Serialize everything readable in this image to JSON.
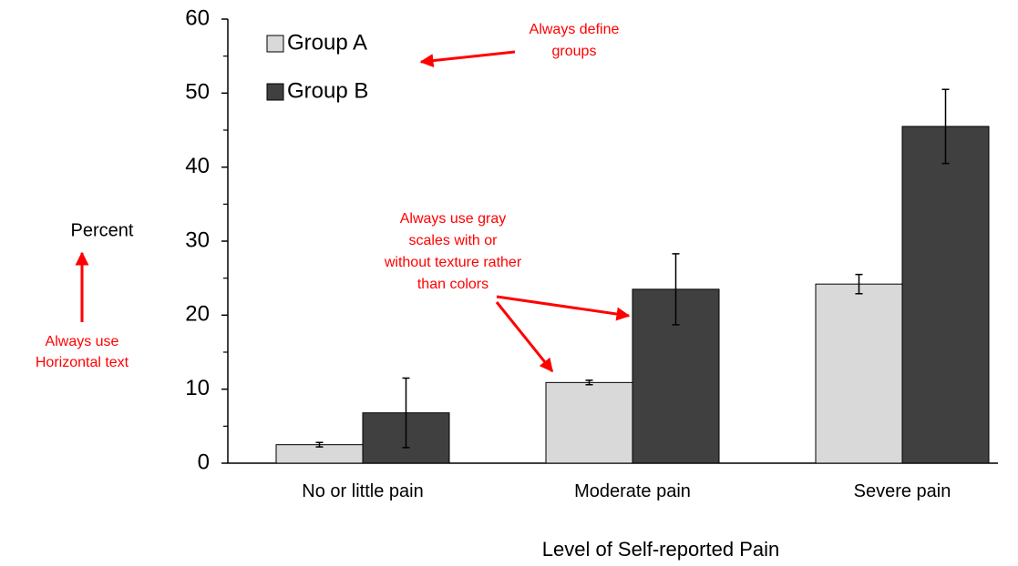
{
  "chart_data": {
    "type": "bar",
    "y_label": "Percent",
    "x_label": "Level of Self-reported Pain",
    "categories": [
      "No or little pain",
      "Moderate pain",
      "Severe pain"
    ],
    "series": [
      {
        "name": "Group A",
        "color": "#d9d9d9",
        "values": [
          2.5,
          10.9,
          24.2
        ],
        "errors": [
          0.3,
          0.3,
          1.3
        ]
      },
      {
        "name": "Group B",
        "color": "#404040",
        "values": [
          6.8,
          23.5,
          45.5
        ],
        "errors": [
          4.7,
          4.8,
          5.0
        ]
      }
    ],
    "ylim": [
      0,
      60
    ],
    "yticks": [
      0,
      10,
      20,
      30,
      40,
      50,
      60
    ],
    "yminorticks": [
      5,
      15,
      25,
      35,
      45,
      55
    ],
    "legend": "top-left",
    "annotations": [
      {
        "lines": [
          "Always define",
          "groups"
        ]
      },
      {
        "lines": [
          "Always use gray",
          "scales with or",
          "without texture rather",
          "than colors"
        ]
      },
      {
        "lines": [
          "Always use",
          "Horizontal text"
        ]
      }
    ]
  }
}
